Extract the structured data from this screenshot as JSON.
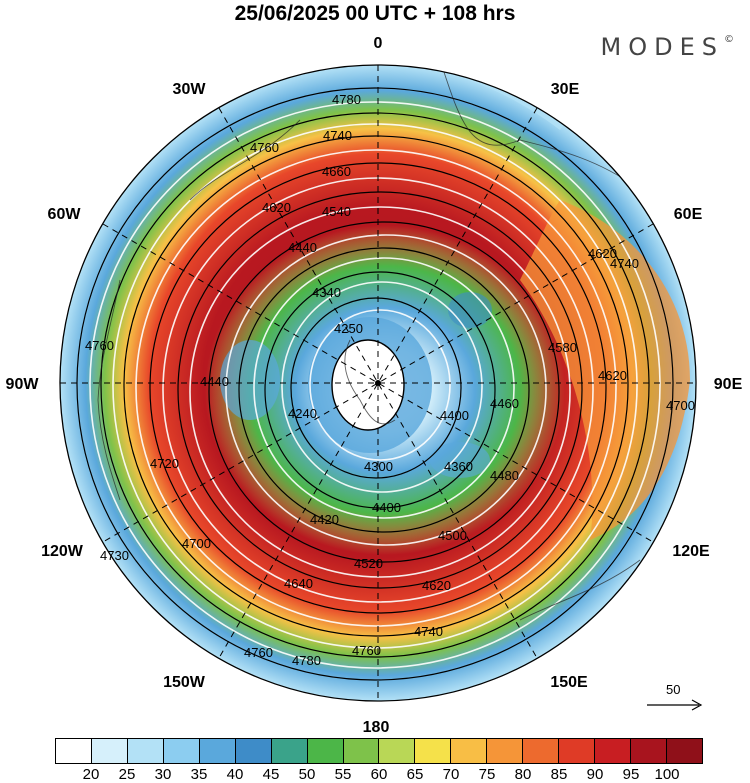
{
  "title": "25/06/2025  00 UTC  + 108 hrs",
  "brand": "MODES",
  "brand_mark": "©",
  "longitudes": [
    "0",
    "30E",
    "60E",
    "90E",
    "120E",
    "150E",
    "180",
    "150W",
    "120W",
    "90W",
    "60W",
    "30W"
  ],
  "height_contours": [
    "4780",
    "4760",
    "4740",
    "4660",
    "4620",
    "4540",
    "4440",
    "4340",
    "4250",
    "4300",
    "4360",
    "4400",
    "4420",
    "4500",
    "4520",
    "4620",
    "4640",
    "4700",
    "4720",
    "4730",
    "4580",
    "4460",
    "4480",
    "4240",
    "4320",
    "4680",
    "4560"
  ],
  "scale": {
    "value": "50",
    "icon": "arrow-right-icon"
  },
  "colorbar": {
    "colors": [
      "#ffffff",
      "#d6f0fb",
      "#b3e1f6",
      "#8ccdf0",
      "#5aa8dc",
      "#3e8cc8",
      "#3aa38a",
      "#4cb648",
      "#7ec24a",
      "#b9d756",
      "#f5e14a",
      "#f8be45",
      "#f59538",
      "#ed6a2e",
      "#df3b26",
      "#c81e22",
      "#a8141e",
      "#8f1019"
    ],
    "ticks": [
      "20",
      "25",
      "30",
      "35",
      "40",
      "45",
      "50",
      "55",
      "60",
      "65",
      "70",
      "75",
      "80",
      "85",
      "90",
      "95",
      "100"
    ]
  }
}
